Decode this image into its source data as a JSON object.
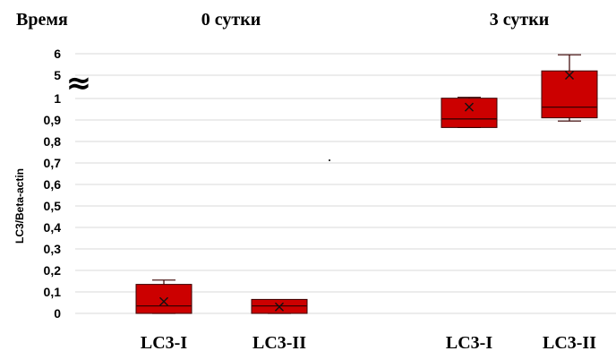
{
  "chart_data": {
    "type": "box",
    "row_label": "Время",
    "group_labels": [
      "0 сутки",
      "3 сутки"
    ],
    "ylabel": "LC3/Beta-actin",
    "y_ticks": [
      "0",
      "0,1",
      "0,2",
      "0,3",
      "0,4",
      "0,5",
      "0,6",
      "0,7",
      "0,8",
      "0,9",
      "1",
      "5",
      "6"
    ],
    "axis_break": "≈",
    "ylim": [
      0,
      6
    ],
    "y_break_between": [
      1,
      5
    ],
    "categories": [
      "LC3-I",
      "LC3-II",
      "LC3-I",
      "LC3-II"
    ],
    "boxes": [
      {
        "group": "0 сутки",
        "label": "LC3-I",
        "min": 0.0,
        "q1": 0.0,
        "median": 0.035,
        "q3": 0.135,
        "max": 0.155,
        "mean": 0.055
      },
      {
        "group": "0 сутки",
        "label": "LC3-II",
        "min": 0.0,
        "q1": 0.0,
        "median": 0.035,
        "q3": 0.065,
        "max": 0.065,
        "mean": 0.03
      },
      {
        "group": "3 сутки",
        "label": "LC3-I",
        "min": 0.865,
        "q1": 0.865,
        "median": 0.905,
        "q3": 1.05,
        "max": 1.2,
        "mean": 0.96
      },
      {
        "group": "3 сутки",
        "label": "LC3-II",
        "min": 0.895,
        "q1": 0.91,
        "median": 0.96,
        "q3": 5.2,
        "max": 5.95,
        "mean": 5.0
      }
    ],
    "colors": {
      "box": "#cc0000",
      "edge": "#3a0000",
      "grid": "#d9d9d9"
    }
  }
}
